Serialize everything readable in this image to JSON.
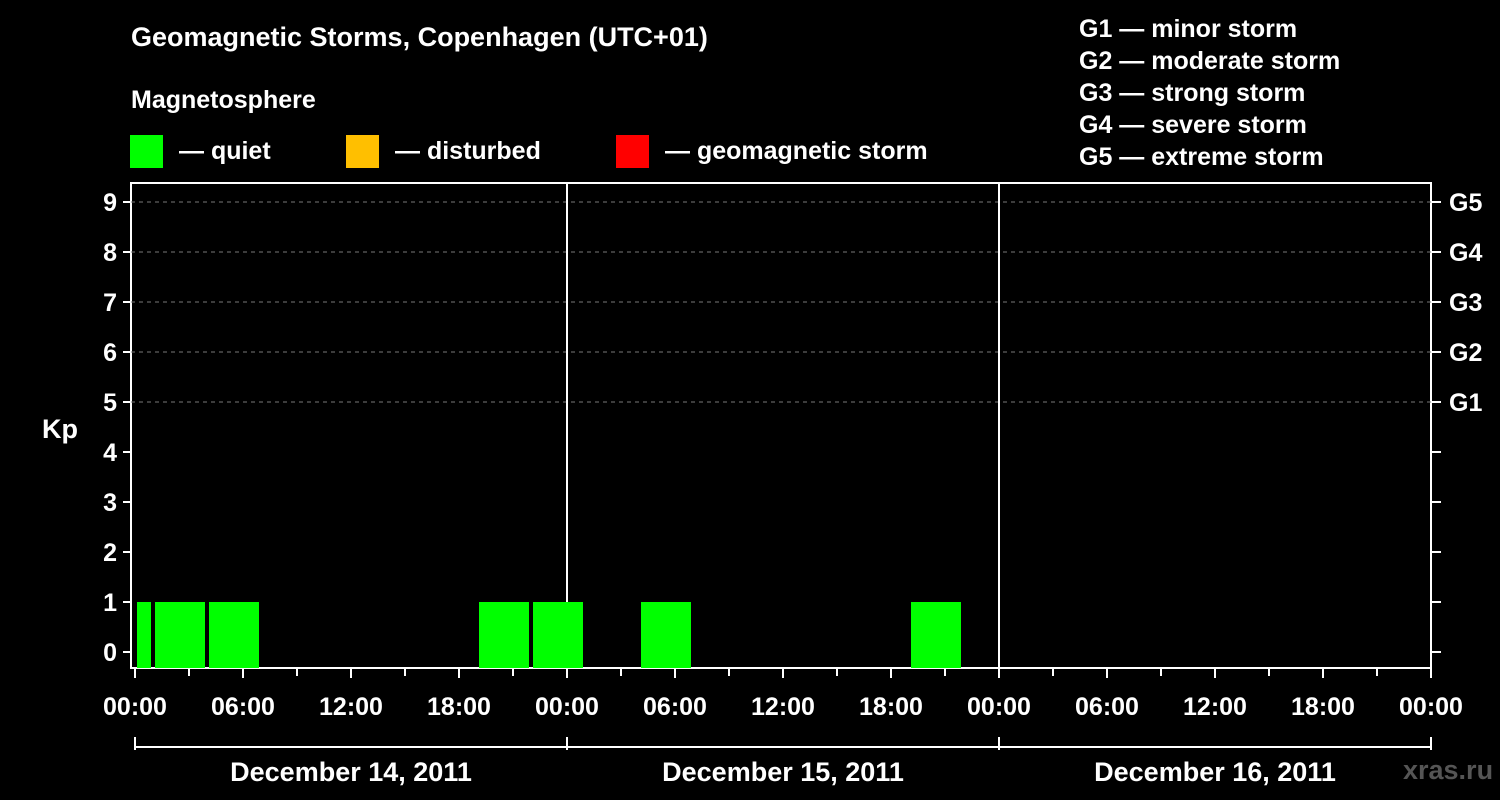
{
  "header": {
    "title": "Geomagnetic Storms, Copenhagen (UTC+01)",
    "subtitle": "Magnetosphere"
  },
  "legend": [
    {
      "label": "— quiet",
      "color": "#00ff00"
    },
    {
      "label": "— disturbed",
      "color": "#ffbf00"
    },
    {
      "label": "— geomagnetic storm",
      "color": "#ff0000"
    }
  ],
  "storm_scale": [
    "G1 — minor storm",
    "G2 — moderate storm",
    "G3 — strong storm",
    "G4 — severe storm",
    "G5 — extreme storm"
  ],
  "watermark": "xras.ru",
  "chart_data": {
    "type": "bar",
    "ylabel": "Kp",
    "ylim": [
      0,
      9
    ],
    "y_ticks": [
      "0",
      "1",
      "2",
      "3",
      "4",
      "5",
      "6",
      "7",
      "8",
      "9"
    ],
    "right_axis_labels": [
      {
        "kp": 5,
        "label": "G1"
      },
      {
        "kp": 6,
        "label": "G2"
      },
      {
        "kp": 7,
        "label": "G3"
      },
      {
        "kp": 8,
        "label": "G4"
      },
      {
        "kp": 9,
        "label": "G5"
      }
    ],
    "x_ticks": [
      "00:00",
      "06:00",
      "12:00",
      "18:00",
      "00:00",
      "06:00",
      "12:00",
      "18:00",
      "00:00",
      "06:00",
      "12:00",
      "18:00",
      "00:00"
    ],
    "days": [
      "December 14, 2011",
      "December 15, 2011",
      "December 16, 2011"
    ],
    "grid": "dashed horizontal at Kp 5-9",
    "bars": [
      {
        "start": "2011-12-14 00:00",
        "end": "2011-12-14 01:00",
        "kp": 1,
        "status": "quiet"
      },
      {
        "start": "2011-12-14 01:00",
        "end": "2011-12-14 04:00",
        "kp": 1,
        "status": "quiet"
      },
      {
        "start": "2011-12-14 04:00",
        "end": "2011-12-14 07:00",
        "kp": 1,
        "status": "quiet"
      },
      {
        "start": "2011-12-14 19:00",
        "end": "2011-12-14 22:00",
        "kp": 1,
        "status": "quiet"
      },
      {
        "start": "2011-12-14 22:00",
        "end": "2011-12-15 01:00",
        "kp": 1,
        "status": "quiet"
      },
      {
        "start": "2011-12-15 04:00",
        "end": "2011-12-15 07:00",
        "kp": 1,
        "status": "quiet"
      },
      {
        "start": "2011-12-15 19:00",
        "end": "2011-12-15 22:00",
        "kp": 1,
        "status": "quiet"
      }
    ]
  }
}
